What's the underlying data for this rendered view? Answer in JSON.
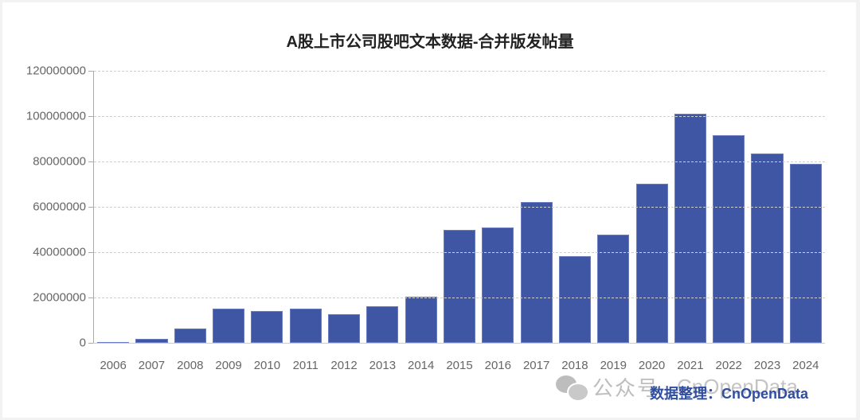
{
  "chart_data": {
    "type": "bar",
    "title": "A股上市公司股吧文本数据-合并版发帖量",
    "xlabel": "",
    "ylabel": "",
    "ylim": [
      0,
      120000000
    ],
    "yticks": [
      0,
      20000000,
      40000000,
      60000000,
      80000000,
      100000000,
      120000000
    ],
    "ytick_labels": [
      "0",
      "20000000",
      "40000000",
      "60000000",
      "80000000",
      "100000000",
      "120000000"
    ],
    "grid": true,
    "legend": null,
    "bar_color": "#3f56a5",
    "categories": [
      "2006",
      "2007",
      "2008",
      "2009",
      "2010",
      "2011",
      "2012",
      "2013",
      "2014",
      "2015",
      "2016",
      "2017",
      "2018",
      "2019",
      "2020",
      "2021",
      "2022",
      "2023",
      "2024"
    ],
    "values": [
      500000,
      1800000,
      6300000,
      15100000,
      14000000,
      15100000,
      12600000,
      16100000,
      20400000,
      49800000,
      50900000,
      62100000,
      38200000,
      47700000,
      70200000,
      101000000,
      91600000,
      83500000,
      79000000
    ]
  },
  "watermark": {
    "icon": "wechat-icon",
    "text": "公众号",
    "brand": "CnOpenData"
  },
  "source_note": "数据整理：CnOpenData"
}
